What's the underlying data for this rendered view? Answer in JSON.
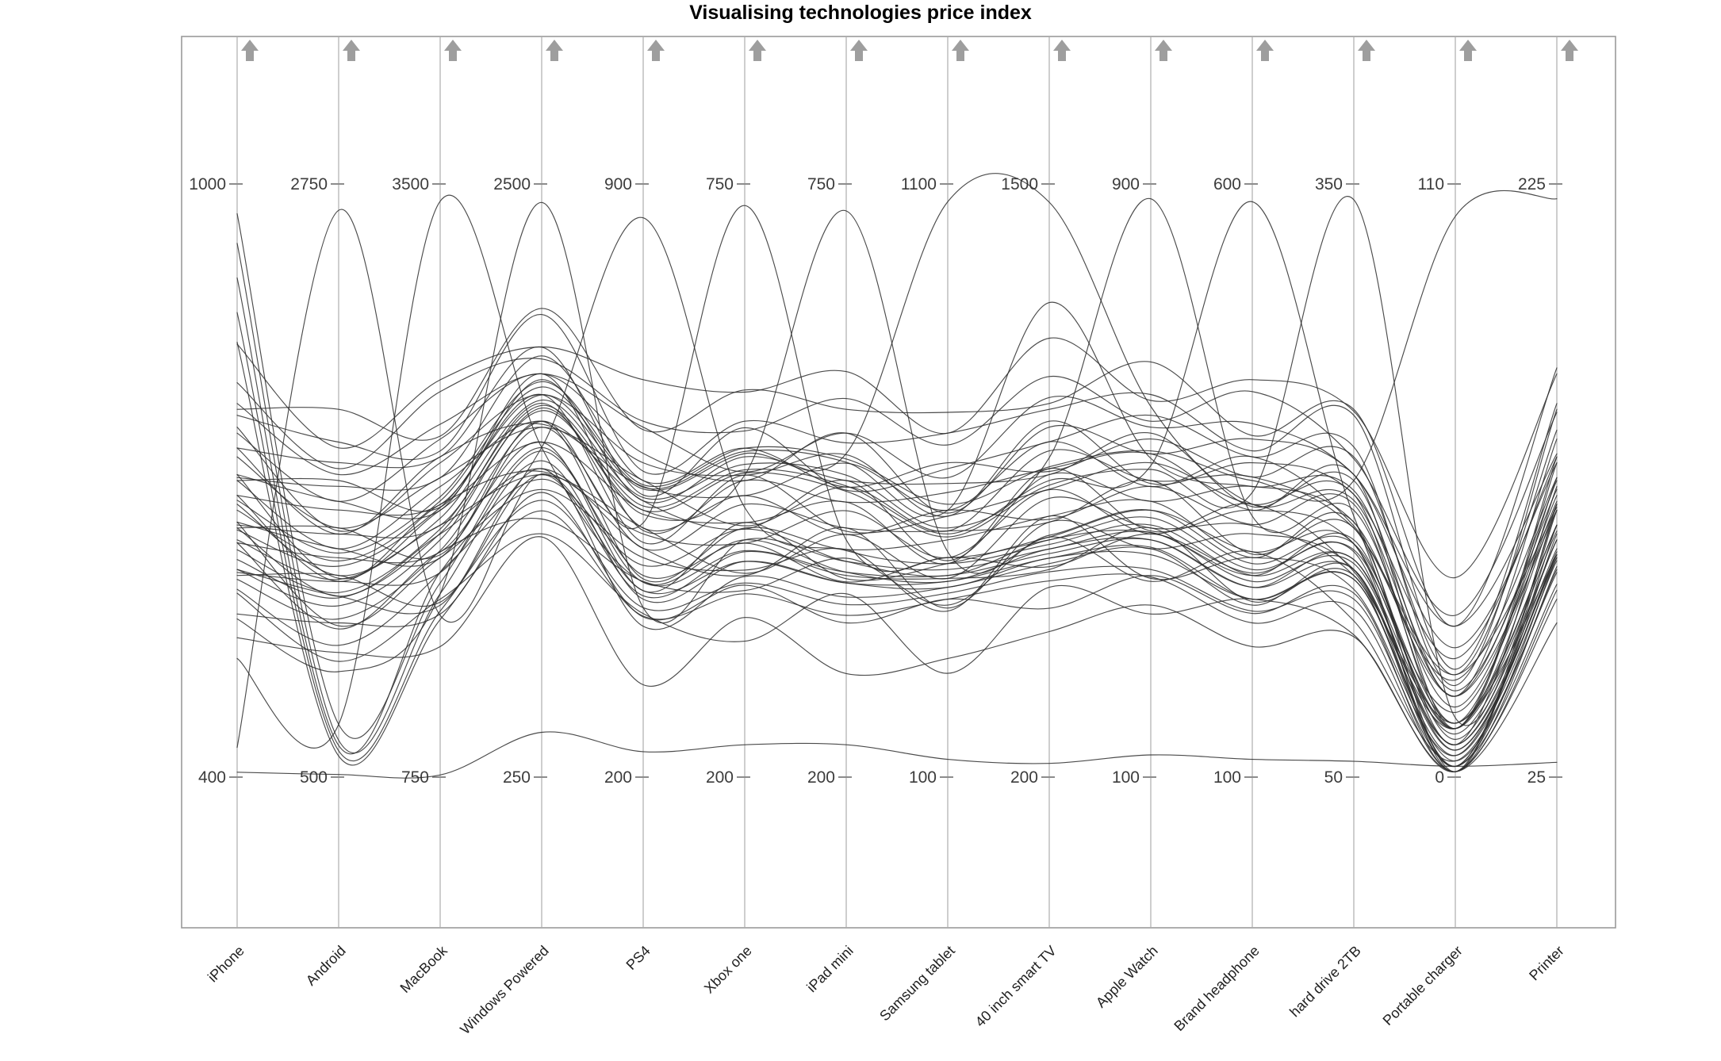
{
  "title": "Visualising technologies price index",
  "colors": {
    "line": "#2b2b2b",
    "axis": "#adadad",
    "frame": "#9a9a9a",
    "arrow": "#9e9e9e",
    "tick_text": "#3c3c3c",
    "category_text": "#1f1f1f",
    "background": "#ffffff"
  },
  "chart_data": {
    "type": "line",
    "subtype": "parallel-coordinates",
    "title": "Visualising technologies price index",
    "legend": "none",
    "grid": "off",
    "axis_arrow_direction": "up",
    "axes": [
      {
        "label": "iPhone",
        "min": 400,
        "max": 1000
      },
      {
        "label": "Android",
        "min": 500,
        "max": 2750
      },
      {
        "label": "MacBook",
        "min": 750,
        "max": 3500
      },
      {
        "label": "Windows Powered",
        "min": 250,
        "max": 2500
      },
      {
        "label": "PS4",
        "min": 200,
        "max": 900
      },
      {
        "label": "Xbox one",
        "min": 200,
        "max": 750
      },
      {
        "label": "iPad mini",
        "min": 200,
        "max": 750
      },
      {
        "label": "Samsung tablet",
        "min": 100,
        "max": 1100
      },
      {
        "label": "40 inch smart TV",
        "min": 200,
        "max": 1500
      },
      {
        "label": "Apple Watch",
        "min": 100,
        "max": 900
      },
      {
        "label": "Brand headphone",
        "min": 100,
        "max": 600
      },
      {
        "label": "hard drive 2TB",
        "min": 50,
        "max": 350
      },
      {
        "label": "Portable charger",
        "min": 0,
        "max": 110
      },
      {
        "label": "Printer",
        "min": 25,
        "max": 225
      }
    ],
    "series": [
      [
        610,
        1186,
        1547,
        1420,
        378,
        386,
        367,
        420,
        668,
        408,
        245,
        155,
        2,
        99
      ],
      [
        637,
        1062,
        1794,
        1229,
        431,
        373,
        403,
        390,
        726,
        364,
        290,
        129,
        3,
        94
      ],
      [
        604,
        1265,
        1561,
        1398,
        414,
        409,
        387,
        435,
        655,
        436,
        248,
        152,
        2,
        107
      ],
      [
        658,
        1074,
        1767,
        1341,
        459,
        392,
        411,
        380,
        772,
        368,
        285,
        145,
        4,
        101
      ],
      [
        607,
        1242,
        1698,
        1487,
        438,
        417,
        381,
        470,
        661,
        428,
        272,
        164,
        2,
        110
      ],
      [
        652,
        1186,
        1877,
        1420,
        470,
        387,
        431,
        385,
        759,
        408,
        305,
        155,
        6,
        99
      ],
      [
        637,
        1332,
        1794,
        1521,
        420,
        436,
        384,
        460,
        726,
        460,
        290,
        168,
        1,
        117
      ],
      [
        676,
        1265,
        1918,
        1397,
        494,
        389,
        425,
        435,
        811,
        436,
        312,
        152,
        10,
        100
      ],
      [
        658,
        1366,
        1767,
        1600,
        434,
        431,
        411,
        500,
        772,
        472,
        285,
        179,
        1,
        115
      ],
      [
        685,
        1242,
        2014,
        1409,
        487,
        417,
        447,
        470,
        830,
        428,
        330,
        154,
        9,
        110
      ],
      [
        652,
        1445,
        1781,
        1577,
        470,
        453,
        431,
        515,
        759,
        500,
        288,
        176,
        6,
        123
      ],
      [
        706,
        1254,
        1987,
        1521,
        515,
        436,
        455,
        460,
        876,
        432,
        325,
        168,
        9,
        117
      ],
      [
        655,
        1422,
        1918,
        1668,
        494,
        461,
        425,
        550,
        765,
        492,
        313,
        188,
        10,
        126
      ],
      [
        700,
        1366,
        2097,
        1600,
        526,
        430,
        475,
        465,
        863,
        472,
        345,
        179,
        15,
        115
      ],
      [
        685,
        1513,
        2014,
        1701,
        477,
        480,
        428,
        540,
        831,
        524,
        330,
        193,
        9,
        133
      ],
      [
        724,
        1445,
        2138,
        1577,
        550,
        433,
        469,
        515,
        915,
        500,
        353,
        176,
        19,
        116
      ],
      [
        706,
        1546,
        1987,
        1780,
        491,
        475,
        455,
        580,
        876,
        536,
        325,
        203,
        9,
        131
      ],
      [
        733,
        1422,
        2235,
        1589,
        543,
        461,
        491,
        550,
        935,
        492,
        370,
        177,
        18,
        126
      ],
      [
        700,
        1625,
        2001,
        1758,
        526,
        497,
        475,
        595,
        863,
        564,
        328,
        200,
        15,
        139
      ],
      [
        754,
        1434,
        2207,
        1701,
        571,
        480,
        499,
        540,
        980,
        496,
        365,
        193,
        22,
        133
      ],
      [
        703,
        1603,
        2138,
        1848,
        550,
        505,
        469,
        630,
        870,
        556,
        353,
        212,
        19,
        142
      ],
      [
        748,
        1546,
        2317,
        1780,
        582,
        475,
        519,
        545,
        967,
        536,
        385,
        203,
        24,
        131
      ],
      [
        733,
        1693,
        2235,
        1881,
        533,
        524,
        466,
        620,
        935,
        588,
        370,
        217,
        17,
        149
      ],
      [
        778,
        1648,
        2386,
        1780,
        613,
        483,
        519,
        605,
        1032,
        572,
        398,
        203,
        28,
        134
      ],
      [
        766,
        1771,
        2262,
        2005,
        561,
        530,
        510,
        680,
        1006,
        616,
        375,
        233,
        20,
        151
      ],
      [
        799,
        1670,
        2537,
        1836,
        620,
        521,
        551,
        660,
        1078,
        580,
        425,
        211,
        30,
        148
      ],
      [
        772,
        1895,
        2331,
        2028,
        610,
        559,
        541,
        715,
        1019,
        660,
        388,
        236,
        28,
        163
      ],
      [
        838,
        1749,
        2592,
        1882,
        669,
        557,
        576,
        680,
        1162,
        608,
        435,
        235,
        37,
        161
      ],
      [
        565,
        1085,
        1506,
        1330,
        389,
        378,
        343,
        400,
        570,
        372,
        238,
        143,
        1,
        96
      ],
      [
        586,
        939,
        1575,
        1173,
        393,
        326,
        370,
        275,
        616,
        320,
        250,
        122,
        1,
        77
      ],
      [
        541,
        973,
        1355,
        1161,
        309,
        348,
        296,
        300,
        519,
        332,
        210,
        121,
        1,
        85
      ],
      [
        970,
        700,
        1650,
        1500,
        430,
        420,
        390,
        430,
        700,
        420,
        260,
        160,
        5,
        100
      ],
      [
        940,
        640,
        1600,
        1450,
        410,
        400,
        380,
        420,
        680,
        400,
        250,
        150,
        3,
        95
      ],
      [
        905,
        620,
        1700,
        1380,
        450,
        430,
        400,
        440,
        720,
        430,
        270,
        170,
        7,
        105
      ],
      [
        870,
        600,
        1520,
        1300,
        400,
        380,
        360,
        410,
        650,
        380,
        240,
        140,
        2,
        90
      ],
      [
        840,
        580,
        1480,
        1260,
        390,
        370,
        350,
        400,
        630,
        370,
        230,
        135,
        1,
        88
      ],
      [
        430,
        2650,
        1500,
        1400,
        420,
        400,
        380,
        430,
        680,
        410,
        250,
        150,
        4,
        98
      ],
      [
        520,
        700,
        3420,
        1500,
        430,
        410,
        390,
        440,
        690,
        420,
        260,
        155,
        5,
        100
      ],
      [
        560,
        900,
        1600,
        2430,
        400,
        420,
        400,
        450,
        700,
        430,
        265,
        158,
        6,
        102
      ],
      [
        590,
        1000,
        1700,
        1500,
        860,
        450,
        410,
        460,
        710,
        440,
        270,
        160,
        8,
        105
      ],
      [
        600,
        1100,
        1800,
        1600,
        500,
        730,
        420,
        470,
        720,
        450,
        275,
        165,
        9,
        108
      ],
      [
        610,
        1150,
        1850,
        1650,
        510,
        480,
        725,
        480,
        730,
        460,
        280,
        168,
        10,
        110
      ],
      [
        650,
        1300,
        2000,
        1700,
        540,
        500,
        500,
        1070,
        1460,
        600,
        330,
        190,
        15,
        125
      ],
      [
        640,
        1250,
        1950,
        1680,
        530,
        490,
        480,
        520,
        900,
        880,
        320,
        185,
        13,
        120
      ],
      [
        630,
        1200,
        1900,
        1660,
        520,
        485,
        470,
        510,
        850,
        520,
        585,
        182,
        12,
        118
      ],
      [
        620,
        1180,
        1880,
        1640,
        515,
        482,
        465,
        505,
        840,
        515,
        340,
        342,
        11,
        115
      ],
      [
        680,
        1350,
        2050,
        1750,
        545,
        505,
        495,
        560,
        880,
        540,
        350,
        200,
        104,
        220
      ],
      [
        670,
        1320,
        2030,
        1730,
        542,
        502,
        492,
        550,
        1240,
        530,
        345,
        195,
        16,
        122
      ],
      [
        405,
        510,
        760,
        420,
        230,
        230,
        230,
        130,
        230,
        130,
        115,
        58,
        2,
        30
      ]
    ]
  }
}
